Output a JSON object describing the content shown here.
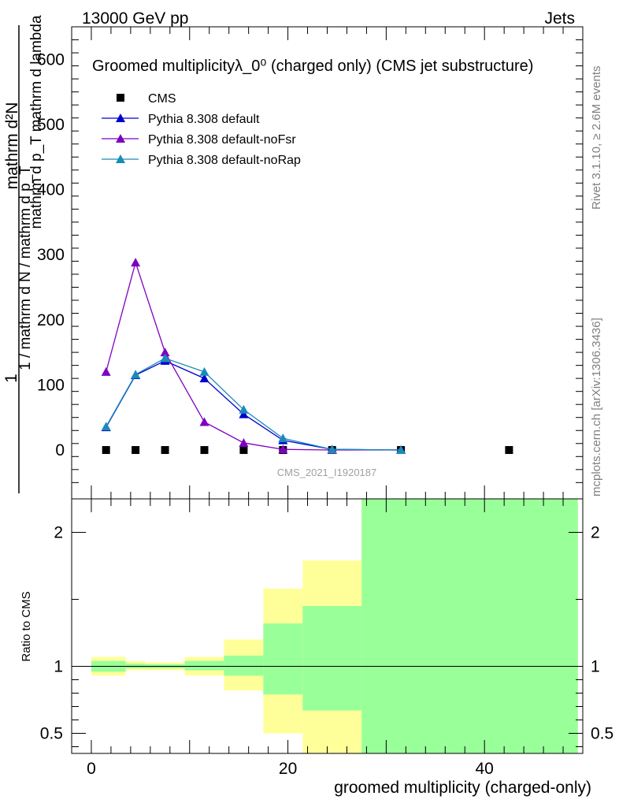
{
  "header": {
    "left": "13000 GeV pp",
    "right": "Jets"
  },
  "side_labels": {
    "rivet": "Rivet 3.1.10, ≥ 2.6M events",
    "mcplots": "mcplots.cern.ch [arXiv:1306.3436]"
  },
  "chart_data": [
    {
      "type": "line",
      "title": "Groomed multiplicityλ_0⁰ (charged only) (CMS jet substructure)",
      "ylabel_numerator": "mathrm d²N",
      "ylabel_denominator": "mathrm d p_T mathrm d lambda",
      "ylabel_outer": "1 / mathrm d N / mathrm d p_T",
      "xlim": [
        -2,
        50
      ],
      "ylim": [
        -75,
        650
      ],
      "yticks": [
        0,
        100,
        200,
        300,
        400,
        500,
        600
      ],
      "watermark": "CMS_2021_I1920187",
      "legend_position": "top-left",
      "series": [
        {
          "name": "CMS",
          "color": "#000000",
          "marker": "square",
          "x": [
            1.5,
            4.5,
            7.5,
            11.5,
            15.5,
            19.5,
            24.5,
            31.5,
            42.5
          ],
          "y": [
            0,
            0,
            0,
            0,
            0,
            0,
            0,
            0,
            0
          ]
        },
        {
          "name": "Pythia 8.308 default",
          "color": "#0000cc",
          "marker": "triangle",
          "x": [
            1.5,
            4.5,
            7.5,
            11.5,
            15.5,
            19.5,
            24.5,
            31.5
          ],
          "y": [
            35,
            115,
            137,
            110,
            55,
            15,
            1,
            0
          ]
        },
        {
          "name": "Pythia 8.308 default-noFsr",
          "color": "#7f00bf",
          "marker": "triangle",
          "x": [
            1.5,
            4.5,
            7.5,
            11.5,
            15.5,
            19.5,
            24.5,
            31.5
          ],
          "y": [
            120,
            288,
            150,
            43,
            11,
            1,
            0,
            0
          ]
        },
        {
          "name": "Pythia 8.308 default-noRap",
          "color": "#1a8bb9",
          "marker": "triangle",
          "x": [
            1.5,
            4.5,
            7.5,
            11.5,
            15.5,
            19.5,
            24.5,
            31.5
          ],
          "y": [
            36,
            116,
            141,
            120,
            62,
            18,
            1,
            0
          ]
        }
      ]
    },
    {
      "type": "area",
      "ylabel": "Ratio to CMS",
      "xlabel": "groomed multiplicity (charged-only)",
      "xlim": [
        -2,
        50
      ],
      "ylim": [
        0.35,
        2.25
      ],
      "yticks": [
        0.5,
        1,
        2
      ],
      "xticks": [
        0,
        20,
        40
      ],
      "reference_line": 1,
      "bands": [
        {
          "x0": 0,
          "x1": 3.5,
          "yellow": [
            0.93,
            1.07
          ],
          "green": [
            0.96,
            1.04
          ]
        },
        {
          "x0": 3.5,
          "x1": 5.5,
          "yellow": [
            0.97,
            1.04
          ],
          "green": [
            0.985,
            1.02
          ]
        },
        {
          "x0": 5.5,
          "x1": 9.5,
          "yellow": [
            0.97,
            1.03
          ],
          "green": [
            0.985,
            1.015
          ]
        },
        {
          "x0": 9.5,
          "x1": 13.5,
          "yellow": [
            0.93,
            1.07
          ],
          "green": [
            0.97,
            1.04
          ]
        },
        {
          "x0": 13.5,
          "x1": 17.5,
          "yellow": [
            0.82,
            1.2
          ],
          "green": [
            0.93,
            1.08
          ]
        },
        {
          "x0": 17.5,
          "x1": 21.5,
          "yellow": [
            0.5,
            1.58
          ],
          "green": [
            0.79,
            1.32
          ]
        },
        {
          "x0": 21.5,
          "x1": 27.5,
          "yellow": [
            0.35,
            1.79
          ],
          "green": [
            0.67,
            1.45
          ]
        },
        {
          "x0": 27.5,
          "x1": 49.5,
          "yellow": [
            0.35,
            2.25
          ],
          "green": [
            0.35,
            2.25
          ]
        }
      ]
    }
  ]
}
